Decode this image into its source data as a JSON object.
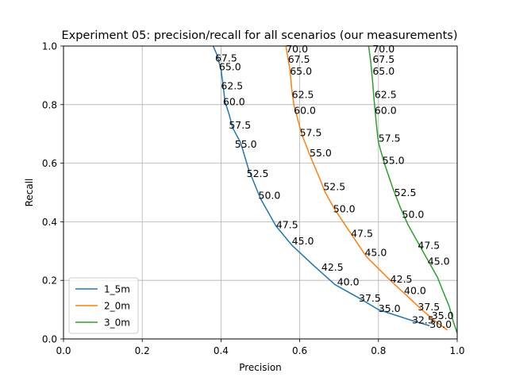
{
  "chart_data": {
    "type": "line",
    "title": "Experiment 05: precision/recall for all scenarios (our measurements)",
    "xlabel": "Precision",
    "ylabel": "Recall",
    "xlim": [
      0,
      1
    ],
    "ylim": [
      0,
      1
    ],
    "xticks": [
      "0.0",
      "0.2",
      "0.4",
      "0.6",
      "0.8",
      "1.0"
    ],
    "yticks": [
      "0.0",
      "0.2",
      "0.4",
      "0.6",
      "0.8",
      "1.0"
    ],
    "grid": true,
    "legend_position": "lower-left",
    "series": [
      {
        "name": "1_5m",
        "color": "#1f77b4",
        "points": [
          [
            0.38,
            1.0
          ],
          [
            0.39,
            0.97
          ],
          [
            0.4,
            0.92
          ],
          [
            0.405,
            0.87
          ],
          [
            0.41,
            0.81
          ],
          [
            0.42,
            0.77
          ],
          [
            0.43,
            0.72
          ],
          [
            0.45,
            0.67
          ],
          [
            0.47,
            0.58
          ],
          [
            0.5,
            0.48
          ],
          [
            0.54,
            0.385
          ],
          [
            0.58,
            0.32
          ],
          [
            0.64,
            0.245
          ],
          [
            0.69,
            0.185
          ],
          [
            0.75,
            0.14
          ],
          [
            0.8,
            0.1
          ],
          [
            0.88,
            0.065
          ],
          [
            0.93,
            0.045
          ]
        ],
        "labels": [
          {
            "x": 0.385,
            "y": 0.96,
            "text": "67.5"
          },
          {
            "x": 0.395,
            "y": 0.93,
            "text": "65.0"
          },
          {
            "x": 0.4,
            "y": 0.865,
            "text": "62.5"
          },
          {
            "x": 0.405,
            "y": 0.81,
            "text": "60.0"
          },
          {
            "x": 0.42,
            "y": 0.73,
            "text": "57.5"
          },
          {
            "x": 0.435,
            "y": 0.665,
            "text": "55.0"
          },
          {
            "x": 0.465,
            "y": 0.565,
            "text": "52.5"
          },
          {
            "x": 0.495,
            "y": 0.49,
            "text": "50.0"
          },
          {
            "x": 0.54,
            "y": 0.39,
            "text": "47.5"
          },
          {
            "x": 0.58,
            "y": 0.335,
            "text": "45.0"
          },
          {
            "x": 0.655,
            "y": 0.245,
            "text": "42.5"
          },
          {
            "x": 0.695,
            "y": 0.195,
            "text": "40.0"
          },
          {
            "x": 0.75,
            "y": 0.14,
            "text": "37.5"
          },
          {
            "x": 0.8,
            "y": 0.105,
            "text": "35.0"
          },
          {
            "x": 0.885,
            "y": 0.065,
            "text": "32.5"
          },
          {
            "x": 0.93,
            "y": 0.05,
            "text": "30.0"
          }
        ]
      },
      {
        "name": "2_0m",
        "color": "#ff7f0e",
        "points": [
          [
            0.565,
            1.0
          ],
          [
            0.575,
            0.92
          ],
          [
            0.58,
            0.85
          ],
          [
            0.585,
            0.8
          ],
          [
            0.595,
            0.75
          ],
          [
            0.605,
            0.7
          ],
          [
            0.625,
            0.63
          ],
          [
            0.65,
            0.55
          ],
          [
            0.665,
            0.5
          ],
          [
            0.69,
            0.44
          ],
          [
            0.73,
            0.36
          ],
          [
            0.77,
            0.28
          ],
          [
            0.83,
            0.2
          ],
          [
            0.87,
            0.15
          ],
          [
            0.91,
            0.1
          ],
          [
            0.94,
            0.065
          ],
          [
            0.975,
            0.03
          ]
        ],
        "labels": [
          {
            "x": 0.565,
            "y": 0.99,
            "text": "70.0"
          },
          {
            "x": 0.57,
            "y": 0.955,
            "text": "67.5"
          },
          {
            "x": 0.575,
            "y": 0.915,
            "text": "65.0"
          },
          {
            "x": 0.58,
            "y": 0.835,
            "text": "62.5"
          },
          {
            "x": 0.585,
            "y": 0.78,
            "text": "60.0"
          },
          {
            "x": 0.6,
            "y": 0.705,
            "text": "57.5"
          },
          {
            "x": 0.625,
            "y": 0.635,
            "text": "55.0"
          },
          {
            "x": 0.66,
            "y": 0.52,
            "text": "52.5"
          },
          {
            "x": 0.685,
            "y": 0.445,
            "text": "50.0"
          },
          {
            "x": 0.73,
            "y": 0.36,
            "text": "47.5"
          },
          {
            "x": 0.765,
            "y": 0.295,
            "text": "45.0"
          },
          {
            "x": 0.83,
            "y": 0.205,
            "text": "42.5"
          },
          {
            "x": 0.865,
            "y": 0.165,
            "text": "40.0"
          },
          {
            "x": 0.9,
            "y": 0.11,
            "text": "37.5"
          },
          {
            "x": 0.935,
            "y": 0.08,
            "text": "35.0"
          }
        ]
      },
      {
        "name": "3_0m",
        "color": "#2ca02c",
        "points": [
          [
            0.775,
            1.0
          ],
          [
            0.78,
            0.95
          ],
          [
            0.785,
            0.88
          ],
          [
            0.79,
            0.8
          ],
          [
            0.795,
            0.73
          ],
          [
            0.8,
            0.67
          ],
          [
            0.815,
            0.6
          ],
          [
            0.835,
            0.52
          ],
          [
            0.855,
            0.45
          ],
          [
            0.875,
            0.39
          ],
          [
            0.9,
            0.33
          ],
          [
            0.925,
            0.27
          ],
          [
            0.95,
            0.21
          ],
          [
            0.965,
            0.16
          ],
          [
            0.98,
            0.11
          ],
          [
            0.99,
            0.06
          ],
          [
            1.0,
            0.02
          ]
        ],
        "labels": [
          {
            "x": 0.785,
            "y": 0.99,
            "text": "70.0"
          },
          {
            "x": 0.785,
            "y": 0.955,
            "text": "67.5"
          },
          {
            "x": 0.785,
            "y": 0.915,
            "text": "65.0"
          },
          {
            "x": 0.79,
            "y": 0.835,
            "text": "62.5"
          },
          {
            "x": 0.79,
            "y": 0.78,
            "text": "60.0"
          },
          {
            "x": 0.8,
            "y": 0.685,
            "text": "57.5"
          },
          {
            "x": 0.81,
            "y": 0.61,
            "text": "55.0"
          },
          {
            "x": 0.84,
            "y": 0.5,
            "text": "52.5"
          },
          {
            "x": 0.86,
            "y": 0.425,
            "text": "50.0"
          },
          {
            "x": 0.9,
            "y": 0.32,
            "text": "47.5"
          },
          {
            "x": 0.925,
            "y": 0.265,
            "text": "45.0"
          }
        ]
      }
    ]
  }
}
